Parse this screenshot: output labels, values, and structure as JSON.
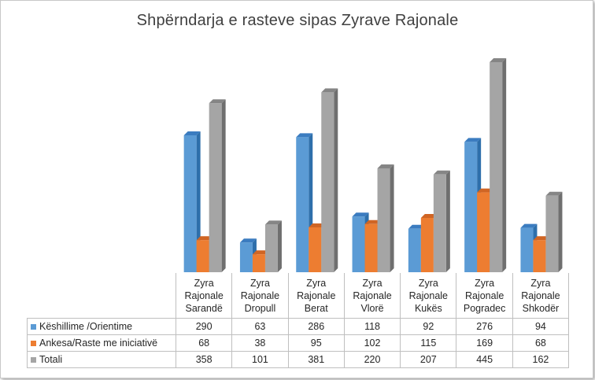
{
  "chart_data": {
    "type": "bar",
    "title": "Shpërndarja e rasteve sipas Zyrave Rajonale",
    "categories": [
      [
        "Zyra",
        "Rajonale",
        "Sarandë"
      ],
      [
        "Zyra",
        "Rajonale",
        "Dropull"
      ],
      [
        "Zyra",
        "Rajonale",
        "Berat"
      ],
      [
        "Zyra",
        "Rajonale",
        "Vlorë"
      ],
      [
        "Zyra",
        "Rajonale",
        "Kukës"
      ],
      [
        "Zyra",
        "Rajonale",
        "Pogradec"
      ],
      [
        "Zyra",
        "Rajonale",
        "Shkodër"
      ]
    ],
    "series": [
      {
        "name": "Këshillime /Orientime",
        "color": "#5b9bd5",
        "side": "#2e6fab",
        "top": "#3b7cc0",
        "values": [
          290,
          63,
          286,
          118,
          92,
          276,
          94
        ]
      },
      {
        "name": "Ankesa/Raste me iniciativë",
        "color": "#ed7d31",
        "side": "#b85d1e",
        "top": "#d06524",
        "values": [
          68,
          38,
          95,
          102,
          115,
          169,
          68
        ]
      },
      {
        "name": "Totali",
        "color": "#a5a5a5",
        "side": "#6f6f6f",
        "top": "#858585",
        "values": [
          358,
          101,
          381,
          220,
          207,
          445,
          162
        ]
      }
    ],
    "ylim": [
      0,
      450
    ],
    "grid": false,
    "legend": "data-table"
  }
}
